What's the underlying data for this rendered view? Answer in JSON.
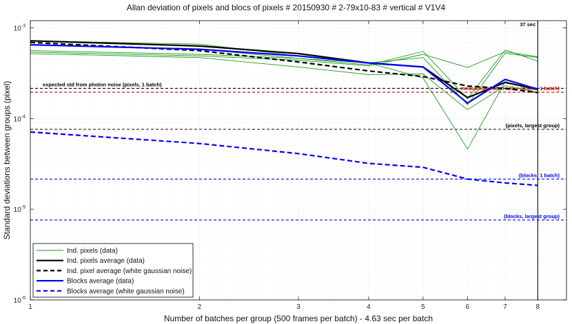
{
  "chart_data": {
    "type": "line",
    "title": "Allan deviation of pixels and blocs of pixels # 20150930 # 2-79x10-83 # vertical # V1V4",
    "xlabel": "Number of batches per group (500 frames per batch) - 4.63 sec per batch",
    "ylabel": "Standard deviations between groups (pixel)",
    "xscale": "log",
    "yscale": "log",
    "xlim": [
      1,
      9
    ],
    "ylim": [
      1e-06,
      0.0012
    ],
    "grid": true,
    "legend_position": "bottom-left",
    "x_ticks": [
      1,
      2,
      3,
      4,
      5,
      6,
      7,
      8
    ],
    "x_tick_labels": [
      "1",
      "2",
      "3",
      "4",
      "5",
      "6",
      "7",
      "8"
    ],
    "y_ticks": [
      1e-06,
      1e-05,
      0.0001,
      0.001
    ],
    "y_tick_labels": [
      {
        "base": "10",
        "exp": "-6"
      },
      {
        "base": "10",
        "exp": "-5"
      },
      {
        "base": "10",
        "exp": "-4"
      },
      {
        "base": "10",
        "exp": "-3"
      }
    ],
    "x": [
      1,
      2,
      3,
      4,
      5,
      6,
      7,
      8
    ],
    "individual_pixels": [
      [
        0.00056,
        0.00051,
        0.00046,
        0.00039,
        0.00055,
        0.000165,
        0.00057,
        0.00043
      ],
      [
        0.00054,
        0.00049,
        0.00044,
        0.00038,
        0.00051,
        0.000365,
        0.000545,
        0.00048
      ],
      [
        0.00052,
        0.00047,
        0.00037,
        0.000305,
        0.00031,
        0.000125,
        0.00023,
        0.000195
      ],
      [
        0.00065,
        0.00058,
        0.00046,
        0.00041,
        0.00028,
        4.6e-05,
        0.000255,
        0.000205
      ],
      [
        0.00072,
        0.00066,
        0.00049,
        0.00041,
        0.00047,
        0.000142,
        0.000525,
        0.00047
      ]
    ],
    "series": [
      {
        "name": "Ind. pixels average (data)",
        "values": [
          0.00072,
          0.00063,
          0.00052,
          0.00041,
          0.00037,
          0.00017,
          0.00025,
          0.00021
        ],
        "color": "#000000",
        "dash": "solid"
      },
      {
        "name": "Ind. pixel average (white gaussian noise)",
        "values": [
          0.00069,
          0.00056,
          0.00042,
          0.000335,
          0.00029,
          0.000228,
          0.000215,
          0.000193
        ],
        "color": "#000000",
        "dash": "dashed"
      },
      {
        "name": "Blocks average (data)",
        "values": [
          0.00065,
          0.00058,
          0.00049,
          0.00041,
          0.00037,
          0.000148,
          0.00027,
          0.00021
        ],
        "color": "#0000ff",
        "dash": "solid"
      },
      {
        "name": "Blocks average (white gaussian noise)",
        "values": [
          7.1e-05,
          5.3e-05,
          4.1e-05,
          3.2e-05,
          2.9e-05,
          2.15e-05,
          1.95e-05,
          1.83e-05
        ],
        "color": "#0000ff",
        "dash": "dashed"
      }
    ],
    "reference_lines": [
      {
        "y": 0.000215,
        "label": "expected std from photon noise (pixels, 1 batch)",
        "color": "#000000",
        "label_side": "left"
      },
      {
        "y": 0.000195,
        "label": "measured photon noise (pixels, 1 batch)",
        "color": "#cc0000",
        "label_side": "right"
      },
      {
        "y": 7.6e-05,
        "label": "(pixels, largest group)",
        "color": "#000000",
        "label_side": "right"
      },
      {
        "y": 2.15e-05,
        "label": "(blocks, 1 batch)",
        "color": "#0000ff",
        "label_side": "right"
      },
      {
        "y": 7.6e-06,
        "label": "(blocks, largest group)",
        "color": "#0000ff",
        "label_side": "right"
      }
    ],
    "vertical_marker": {
      "x": 8,
      "label": "37 sec"
    },
    "legend": [
      {
        "label": "Ind. pixels (data)",
        "color": "#1a9a1a",
        "dash": "solid",
        "width": 1
      },
      {
        "label": "Ind. pixels average (data)",
        "color": "#000000",
        "dash": "solid",
        "width": 2.2
      },
      {
        "label": "Ind. pixel average (white gaussian noise)",
        "color": "#000000",
        "dash": "dashed",
        "width": 2.2
      },
      {
        "label": "Blocks average (data)",
        "color": "#0000ff",
        "dash": "solid",
        "width": 2.2
      },
      {
        "label": "Blocks average (white gaussian noise)",
        "color": "#0000ff",
        "dash": "dashed",
        "width": 2.2
      }
    ]
  }
}
